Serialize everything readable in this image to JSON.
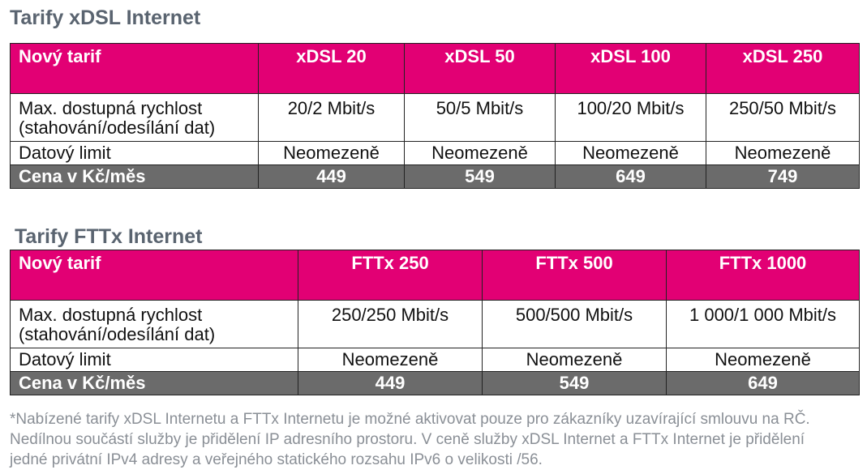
{
  "xdsl": {
    "title": "Tarify xDSL Internet",
    "header": [
      "Nový tarif",
      "xDSL 20",
      "xDSL 50",
      "xDSL 100",
      "xDSL 250"
    ],
    "speed_label_line1": "Max. dostupná rychlost",
    "speed_label_line2": "(stahování/odesílání dat)",
    "speeds": [
      "20/2 Mbit/s",
      "50/5 Mbit/s",
      "100/20 Mbit/s",
      "250/50 Mbit/s"
    ],
    "limit_label": "Datový limit",
    "limits": [
      "Neomezeně",
      "Neomezeně",
      "Neomezeně",
      "Neomezeně"
    ],
    "price_label": "Cena v Kč/měs",
    "prices": [
      "449",
      "549",
      "649",
      "749"
    ]
  },
  "fttx": {
    "title": "Tarify FTTx Internet",
    "header": [
      "Nový tarif",
      "FTTx 250",
      "FTTx 500",
      "FTTx 1000"
    ],
    "speed_label_line1": "Max. dostupná rychlost",
    "speed_label_line2": "(stahování/odesílání dat)",
    "speeds": [
      "250/250 Mbit/s",
      "500/500 Mbit/s",
      "1 000/1 000 Mbit/s"
    ],
    "limit_label": "Datový limit",
    "limits": [
      "Neomezeně",
      "Neomezeně",
      "Neomezeně"
    ],
    "price_label": "Cena v Kč/měs",
    "prices": [
      "449",
      "549",
      "649"
    ]
  },
  "footnote": {
    "line1": "*Nabízené tarify xDSL Internetu a FTTx Internetu je možné aktivovat pouze pro zákazníky uzavírající smlouvu na RČ.",
    "line2": "Nedílnou součástí služby je přidělení IP adresního prostoru. V ceně služby xDSL Internet a FTTx Internet je přidělení",
    "line3": "jedné privátní IPv4 adresy a veřejného statického rozsahu IPv6 o velikosti /56."
  },
  "colors": {
    "header_bg": "#e20074",
    "price_row_bg": "#6b6b6b",
    "title_color": "#5a6470",
    "footnote_color": "#8a8f96"
  }
}
